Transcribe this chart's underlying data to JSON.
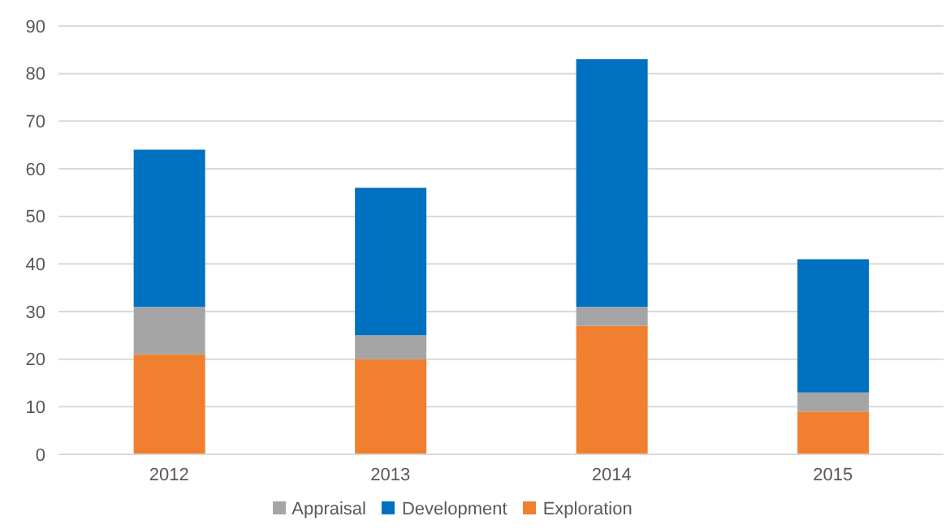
{
  "chart_data": {
    "type": "bar",
    "stacked": true,
    "categories": [
      "2012",
      "2013",
      "2014",
      "2015"
    ],
    "series": [
      {
        "name": "Exploration",
        "color": "#f07f2f",
        "values": [
          21,
          20,
          27,
          9
        ]
      },
      {
        "name": "Appraisal",
        "color": "#a5a5a5",
        "values": [
          10,
          5,
          4,
          4
        ]
      },
      {
        "name": "Development",
        "color": "#0070c0",
        "values": [
          33,
          31,
          52,
          28
        ]
      }
    ],
    "ylim": [
      0,
      90
    ],
    "yticks": [
      0,
      10,
      20,
      30,
      40,
      50,
      60,
      70,
      80,
      90
    ],
    "grid": "y",
    "legend": "bottom"
  }
}
